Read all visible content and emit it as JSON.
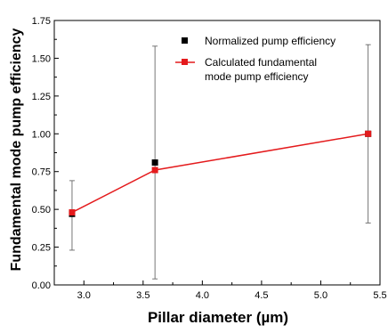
{
  "chart_data": {
    "type": "scatter",
    "xlabel": "Pillar diameter (µm)",
    "ylabel": "Fundamental mode pump efficiency",
    "xlim": [
      2.75,
      5.5
    ],
    "ylim": [
      0.0,
      1.75
    ],
    "x_ticks": [
      "3.0",
      "3.5",
      "4.0",
      "4.5",
      "5.0",
      "5.5"
    ],
    "y_ticks": [
      "0.00",
      "0.25",
      "0.50",
      "0.75",
      "1.00",
      "1.25",
      "1.50",
      "1.75"
    ],
    "grid": false,
    "legend_position": "top-right",
    "series": [
      {
        "name": "Normalized pump efficiency",
        "marker": "square",
        "color": "#000000",
        "x": [
          2.9,
          3.6,
          5.4
        ],
        "y": [
          0.47,
          0.81,
          1.0
        ],
        "error_low": [
          0.23,
          0.04,
          0.41
        ],
        "error_high": [
          0.69,
          1.58,
          1.59
        ]
      },
      {
        "name": "Calculated fundamental mode pump efficiency",
        "legend_lines": [
          "Calculated fundamental",
          "mode pump efficiency"
        ],
        "marker": "square",
        "line": true,
        "color": "#e41a1c",
        "x": [
          2.9,
          3.6,
          5.4
        ],
        "y": [
          0.48,
          0.76,
          1.0
        ]
      }
    ]
  }
}
